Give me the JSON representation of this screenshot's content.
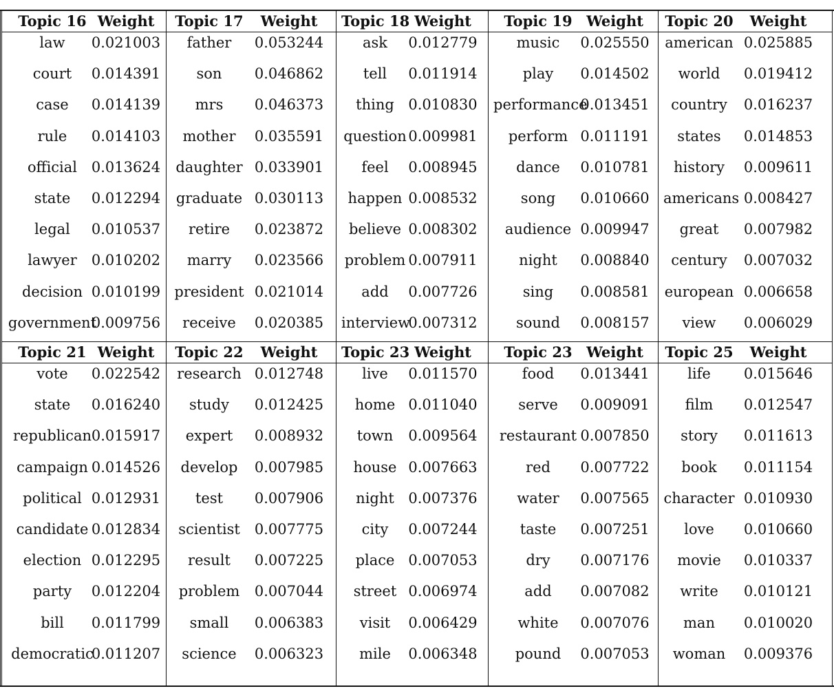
{
  "tables": [
    {
      "groups": [
        {
          "topic": "Topic 16",
          "weight_label": "Weight",
          "rows": [
            [
              "law",
              "0.021003"
            ],
            [
              "court",
              "0.014391"
            ],
            [
              "case",
              "0.014139"
            ],
            [
              "rule",
              "0.014103"
            ],
            [
              "official",
              "0.013624"
            ],
            [
              "state",
              "0.012294"
            ],
            [
              "legal",
              "0.010537"
            ],
            [
              "lawyer",
              "0.010202"
            ],
            [
              "decision",
              "0.010199"
            ],
            [
              "government",
              "0.009756"
            ]
          ]
        },
        {
          "topic": "Topic 17",
          "weight_label": "Weight",
          "rows": [
            [
              "father",
              "0.053244"
            ],
            [
              "son",
              "0.046862"
            ],
            [
              "mrs",
              "0.046373"
            ],
            [
              "mother",
              "0.035591"
            ],
            [
              "daughter",
              "0.033901"
            ],
            [
              "graduate",
              "0.030113"
            ],
            [
              "retire",
              "0.023872"
            ],
            [
              "marry",
              "0.023566"
            ],
            [
              "president",
              "0.021014"
            ],
            [
              "receive",
              "0.020385"
            ]
          ]
        },
        {
          "topic": "Topic 18",
          "weight_label": "Weight",
          "rows": [
            [
              "ask",
              "0.012779"
            ],
            [
              "tell",
              "0.011914"
            ],
            [
              "thing",
              "0.010830"
            ],
            [
              "question",
              "0.009981"
            ],
            [
              "feel",
              "0.008945"
            ],
            [
              "happen",
              "0.008532"
            ],
            [
              "believe",
              "0.008302"
            ],
            [
              "problem",
              "0.007911"
            ],
            [
              "add",
              "0.007726"
            ],
            [
              "interview",
              "0.007312"
            ]
          ]
        },
        {
          "topic": "Topic 19",
          "weight_label": "Weight",
          "rows": [
            [
              "music",
              "0.025550"
            ],
            [
              "play",
              "0.014502"
            ],
            [
              "performance",
              "0.013451"
            ],
            [
              "perform",
              "0.011191"
            ],
            [
              "dance",
              "0.010781"
            ],
            [
              "song",
              "0.010660"
            ],
            [
              "audience",
              "0.009947"
            ],
            [
              "night",
              "0.008840"
            ],
            [
              "sing",
              "0.008581"
            ],
            [
              "sound",
              "0.008157"
            ]
          ]
        },
        {
          "topic": "Topic 20",
          "weight_label": "Weight",
          "rows": [
            [
              "american",
              "0.025885"
            ],
            [
              "world",
              "0.019412"
            ],
            [
              "country",
              "0.016237"
            ],
            [
              "states",
              "0.014853"
            ],
            [
              "history",
              "0.009611"
            ],
            [
              "americans",
              "0.008427"
            ],
            [
              "great",
              "0.007982"
            ],
            [
              "century",
              "0.007032"
            ],
            [
              "european",
              "0.006658"
            ],
            [
              "view",
              "0.006029"
            ]
          ]
        }
      ]
    },
    {
      "groups": [
        {
          "topic": "Topic 21",
          "weight_label": "Weight",
          "rows": [
            [
              "vote",
              "0.022542"
            ],
            [
              "state",
              "0.016240"
            ],
            [
              "republican",
              "0.015917"
            ],
            [
              "campaign",
              "0.014526"
            ],
            [
              "political",
              "0.012931"
            ],
            [
              "candidate",
              "0.012834"
            ],
            [
              "election",
              "0.012295"
            ],
            [
              "party",
              "0.012204"
            ],
            [
              "bill",
              "0.011799"
            ],
            [
              "democratic",
              "0.011207"
            ]
          ]
        },
        {
          "topic": "Topic 22",
          "weight_label": "Weight",
          "rows": [
            [
              "research",
              "0.012748"
            ],
            [
              "study",
              "0.012425"
            ],
            [
              "expert",
              "0.008932"
            ],
            [
              "develop",
              "0.007985"
            ],
            [
              "test",
              "0.007906"
            ],
            [
              "scientist",
              "0.007775"
            ],
            [
              "result",
              "0.007225"
            ],
            [
              "problem",
              "0.007044"
            ],
            [
              "small",
              "0.006383"
            ],
            [
              "science",
              "0.006323"
            ]
          ]
        },
        {
          "topic": "Topic 23",
          "weight_label": "Weight",
          "rows": [
            [
              "live",
              "0.011570"
            ],
            [
              "home",
              "0.011040"
            ],
            [
              "town",
              "0.009564"
            ],
            [
              "house",
              "0.007663"
            ],
            [
              "night",
              "0.007376"
            ],
            [
              "city",
              "0.007244"
            ],
            [
              "place",
              "0.007053"
            ],
            [
              "street",
              "0.006974"
            ],
            [
              "visit",
              "0.006429"
            ],
            [
              "mile",
              "0.006348"
            ]
          ]
        },
        {
          "topic": "Topic 23",
          "weight_label": "Weight",
          "rows": [
            [
              "food",
              "0.013441"
            ],
            [
              "serve",
              "0.009091"
            ],
            [
              "restaurant",
              "0.007850"
            ],
            [
              "red",
              "0.007722"
            ],
            [
              "water",
              "0.007565"
            ],
            [
              "taste",
              "0.007251"
            ],
            [
              "dry",
              "0.007176"
            ],
            [
              "add",
              "0.007082"
            ],
            [
              "white",
              "0.007076"
            ],
            [
              "pound",
              "0.007053"
            ]
          ]
        },
        {
          "topic": "Topic 25",
          "weight_label": "Weight",
          "rows": [
            [
              "life",
              "0.015646"
            ],
            [
              "film",
              "0.012547"
            ],
            [
              "story",
              "0.011613"
            ],
            [
              "book",
              "0.011154"
            ],
            [
              "character",
              "0.010930"
            ],
            [
              "love",
              "0.010660"
            ],
            [
              "movie",
              "0.010337"
            ],
            [
              "write",
              "0.010121"
            ],
            [
              "man",
              "0.010020"
            ],
            [
              "woman",
              "0.009376"
            ]
          ]
        }
      ]
    }
  ]
}
